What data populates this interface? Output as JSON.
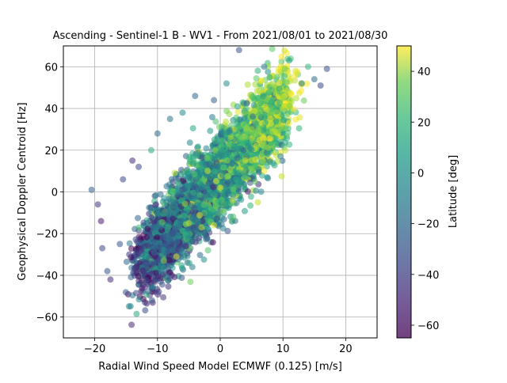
{
  "chart_data": {
    "type": "scatter",
    "title": "Ascending - Sentinel-1 B - WV1 - From 2021/08/01 to 2021/08/30",
    "xlabel": "Radial Wind Speed Model ECMWF (0.125) [m/s]",
    "ylabel": "Geophysical Doppler Centroid [Hz]",
    "xlim": [
      -25,
      25
    ],
    "ylim": [
      -70,
      70
    ],
    "x_ticks": [
      -20,
      -10,
      0,
      10,
      20
    ],
    "y_ticks": [
      -60,
      -40,
      -20,
      0,
      20,
      40,
      60
    ],
    "grid": true,
    "colorbar": {
      "label": "Latitude [deg]",
      "range": [
        -65,
        50
      ],
      "ticks": [
        -60,
        -40,
        -20,
        0,
        20,
        40
      ],
      "colormap": "viridis"
    },
    "point_alpha": 0.55,
    "points_note_values": [
      [
        -20.5,
        1,
        -30
      ],
      [
        -19.5,
        -6,
        -45
      ],
      [
        -18.8,
        -27,
        -40
      ],
      [
        -18,
        -38,
        -35
      ],
      [
        -17.5,
        -42,
        -50
      ],
      [
        -19,
        -14,
        -55
      ],
      [
        -16,
        -25,
        -35
      ],
      [
        -15.5,
        6,
        -40
      ],
      [
        -14.5,
        -30,
        -45
      ],
      [
        -14,
        15,
        -50
      ],
      [
        -13,
        12,
        -40
      ],
      [
        -12,
        -35,
        -30
      ],
      [
        -11,
        20,
        5
      ],
      [
        -10,
        28,
        -25
      ],
      [
        -9.5,
        -43,
        -35
      ],
      [
        -9,
        -33,
        30
      ],
      [
        -8,
        35,
        -20
      ],
      [
        -7,
        -31,
        45
      ],
      [
        -6,
        38,
        -10
      ],
      [
        -5,
        -15,
        40
      ],
      [
        -4,
        46,
        -25
      ],
      [
        -3,
        -17,
        35
      ],
      [
        -2,
        10,
        40
      ],
      [
        -1,
        44,
        -30
      ],
      [
        0,
        2,
        45
      ],
      [
        1,
        52,
        -10
      ],
      [
        2,
        -4,
        35
      ],
      [
        3,
        68,
        -35
      ],
      [
        4,
        15,
        40
      ],
      [
        5,
        30,
        30
      ],
      [
        6,
        45,
        10
      ],
      [
        7,
        60,
        -20
      ],
      [
        8,
        35,
        45
      ],
      [
        9,
        55,
        20
      ],
      [
        10,
        40,
        35
      ],
      [
        11,
        63,
        0
      ],
      [
        12,
        58,
        45
      ],
      [
        13,
        52,
        -15
      ],
      [
        14,
        60,
        10
      ],
      [
        15,
        54,
        -25
      ],
      [
        16,
        51,
        -40
      ],
      [
        17,
        59,
        -35
      ],
      [
        6,
        -5,
        40
      ],
      [
        7,
        10,
        50
      ],
      [
        -1,
        -16,
        45
      ]
    ]
  }
}
